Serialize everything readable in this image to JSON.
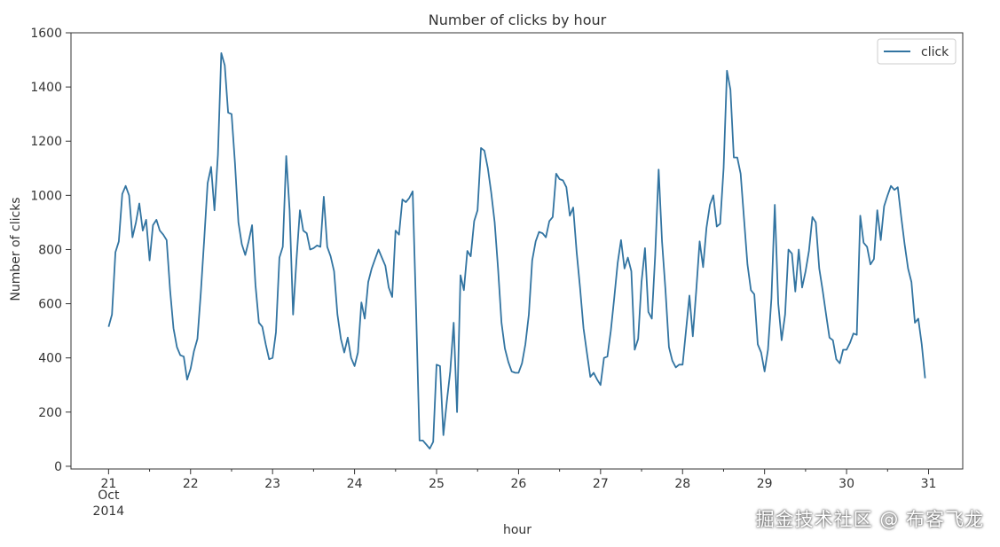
{
  "chart_data": {
    "type": "line",
    "title": "Number of clicks by hour",
    "xlabel": "hour",
    "ylabel": "Number of clicks",
    "xlim": [
      "2014-10-20T13:00",
      "2014-10-31T10:00"
    ],
    "ylim": [
      -10,
      1600
    ],
    "yticks": [
      0,
      200,
      400,
      600,
      800,
      1000,
      1200,
      1400,
      1600
    ],
    "xticks": [
      {
        "x": "2014-10-21",
        "label": "21",
        "sub1": "Oct",
        "sub2": "2014"
      },
      {
        "x": "2014-10-22",
        "label": "22"
      },
      {
        "x": "2014-10-23",
        "label": "23"
      },
      {
        "x": "2014-10-24",
        "label": "24"
      },
      {
        "x": "2014-10-25",
        "label": "25"
      },
      {
        "x": "2014-10-26",
        "label": "26"
      },
      {
        "x": "2014-10-27",
        "label": "27"
      },
      {
        "x": "2014-10-28",
        "label": "28"
      },
      {
        "x": "2014-10-29",
        "label": "29"
      },
      {
        "x": "2014-10-30",
        "label": "30"
      },
      {
        "x": "2014-10-31",
        "label": "31"
      }
    ],
    "legend": {
      "position": "top-right"
    },
    "grid": false,
    "series": [
      {
        "name": "click",
        "color": "#3274a1",
        "points": [
          [
            "2014-10-21T00:00",
            515
          ],
          [
            "2014-10-21T01:00",
            560
          ],
          [
            "2014-10-21T02:00",
            790
          ],
          [
            "2014-10-21T03:00",
            830
          ],
          [
            "2014-10-21T04:00",
            1005
          ],
          [
            "2014-10-21T05:00",
            1035
          ],
          [
            "2014-10-21T06:00",
            1000
          ],
          [
            "2014-10-21T07:00",
            845
          ],
          [
            "2014-10-21T08:00",
            900
          ],
          [
            "2014-10-21T09:00",
            970
          ],
          [
            "2014-10-21T10:00",
            870
          ],
          [
            "2014-10-21T11:00",
            910
          ],
          [
            "2014-10-21T12:00",
            760
          ],
          [
            "2014-10-21T13:00",
            890
          ],
          [
            "2014-10-21T14:00",
            910
          ],
          [
            "2014-10-21T15:00",
            870
          ],
          [
            "2014-10-21T16:00",
            855
          ],
          [
            "2014-10-21T17:00",
            835
          ],
          [
            "2014-10-21T18:00",
            650
          ],
          [
            "2014-10-21T19:00",
            510
          ],
          [
            "2014-10-21T20:00",
            440
          ],
          [
            "2014-10-21T21:00",
            410
          ],
          [
            "2014-10-21T22:00",
            405
          ],
          [
            "2014-10-21T23:00",
            320
          ],
          [
            "2014-10-22T00:00",
            360
          ],
          [
            "2014-10-22T01:00",
            425
          ],
          [
            "2014-10-22T02:00",
            470
          ],
          [
            "2014-10-22T03:00",
            640
          ],
          [
            "2014-10-22T04:00",
            840
          ],
          [
            "2014-10-22T05:00",
            1045
          ],
          [
            "2014-10-22T06:00",
            1105
          ],
          [
            "2014-10-22T07:00",
            945
          ],
          [
            "2014-10-22T08:00",
            1150
          ],
          [
            "2014-10-22T09:00",
            1525
          ],
          [
            "2014-10-22T10:00",
            1480
          ],
          [
            "2014-10-22T11:00",
            1305
          ],
          [
            "2014-10-22T12:00",
            1300
          ],
          [
            "2014-10-22T13:00",
            1120
          ],
          [
            "2014-10-22T14:00",
            900
          ],
          [
            "2014-10-22T15:00",
            820
          ],
          [
            "2014-10-22T16:00",
            780
          ],
          [
            "2014-10-22T17:00",
            830
          ],
          [
            "2014-10-22T18:00",
            890
          ],
          [
            "2014-10-22T19:00",
            670
          ],
          [
            "2014-10-22T20:00",
            530
          ],
          [
            "2014-10-22T21:00",
            515
          ],
          [
            "2014-10-22T22:00",
            450
          ],
          [
            "2014-10-22T23:00",
            395
          ],
          [
            "2014-10-23T00:00",
            400
          ],
          [
            "2014-10-23T01:00",
            495
          ],
          [
            "2014-10-23T02:00",
            770
          ],
          [
            "2014-10-23T03:00",
            810
          ],
          [
            "2014-10-23T04:00",
            1145
          ],
          [
            "2014-10-23T05:00",
            945
          ],
          [
            "2014-10-23T06:00",
            560
          ],
          [
            "2014-10-23T07:00",
            760
          ],
          [
            "2014-10-23T08:00",
            945
          ],
          [
            "2014-10-23T09:00",
            870
          ],
          [
            "2014-10-23T10:00",
            860
          ],
          [
            "2014-10-23T11:00",
            800
          ],
          [
            "2014-10-23T12:00",
            805
          ],
          [
            "2014-10-23T13:00",
            815
          ],
          [
            "2014-10-23T14:00",
            810
          ],
          [
            "2014-10-23T15:00",
            995
          ],
          [
            "2014-10-23T16:00",
            810
          ],
          [
            "2014-10-23T17:00",
            775
          ],
          [
            "2014-10-23T18:00",
            720
          ],
          [
            "2014-10-23T19:00",
            560
          ],
          [
            "2014-10-23T20:00",
            470
          ],
          [
            "2014-10-23T21:00",
            420
          ],
          [
            "2014-10-23T22:00",
            475
          ],
          [
            "2014-10-23T23:00",
            400
          ],
          [
            "2014-10-24T00:00",
            370
          ],
          [
            "2014-10-24T01:00",
            420
          ],
          [
            "2014-10-24T02:00",
            605
          ],
          [
            "2014-10-24T03:00",
            545
          ],
          [
            "2014-10-24T04:00",
            680
          ],
          [
            "2014-10-24T05:00",
            730
          ],
          [
            "2014-10-24T06:00",
            765
          ],
          [
            "2014-10-24T07:00",
            800
          ],
          [
            "2014-10-24T08:00",
            770
          ],
          [
            "2014-10-24T09:00",
            740
          ],
          [
            "2014-10-24T10:00",
            660
          ],
          [
            "2014-10-24T11:00",
            625
          ],
          [
            "2014-10-24T12:00",
            870
          ],
          [
            "2014-10-24T13:00",
            855
          ],
          [
            "2014-10-24T14:00",
            985
          ],
          [
            "2014-10-24T15:00",
            975
          ],
          [
            "2014-10-24T16:00",
            990
          ],
          [
            "2014-10-24T17:00",
            1015
          ],
          [
            "2014-10-24T18:00",
            580
          ],
          [
            "2014-10-24T19:00",
            95
          ],
          [
            "2014-10-24T20:00",
            95
          ],
          [
            "2014-10-24T21:00",
            80
          ],
          [
            "2014-10-24T22:00",
            65
          ],
          [
            "2014-10-24T23:00",
            90
          ],
          [
            "2014-10-25T00:00",
            375
          ],
          [
            "2014-10-25T01:00",
            370
          ],
          [
            "2014-10-25T02:00",
            115
          ],
          [
            "2014-10-25T03:00",
            240
          ],
          [
            "2014-10-25T04:00",
            350
          ],
          [
            "2014-10-25T05:00",
            530
          ],
          [
            "2014-10-25T06:00",
            200
          ],
          [
            "2014-10-25T07:00",
            705
          ],
          [
            "2014-10-25T08:00",
            650
          ],
          [
            "2014-10-25T09:00",
            795
          ],
          [
            "2014-10-25T10:00",
            775
          ],
          [
            "2014-10-25T11:00",
            905
          ],
          [
            "2014-10-25T12:00",
            945
          ],
          [
            "2014-10-25T13:00",
            1175
          ],
          [
            "2014-10-25T14:00",
            1165
          ],
          [
            "2014-10-25T15:00",
            1100
          ],
          [
            "2014-10-25T16:00",
            1010
          ],
          [
            "2014-10-25T17:00",
            900
          ],
          [
            "2014-10-25T18:00",
            730
          ],
          [
            "2014-10-25T19:00",
            530
          ],
          [
            "2014-10-25T20:00",
            435
          ],
          [
            "2014-10-25T21:00",
            385
          ],
          [
            "2014-10-25T22:00",
            350
          ],
          [
            "2014-10-25T23:00",
            345
          ],
          [
            "2014-10-26T00:00",
            345
          ],
          [
            "2014-10-26T01:00",
            380
          ],
          [
            "2014-10-26T02:00",
            450
          ],
          [
            "2014-10-26T03:00",
            560
          ],
          [
            "2014-10-26T04:00",
            760
          ],
          [
            "2014-10-26T05:00",
            830
          ],
          [
            "2014-10-26T06:00",
            865
          ],
          [
            "2014-10-26T07:00",
            860
          ],
          [
            "2014-10-26T08:00",
            845
          ],
          [
            "2014-10-26T09:00",
            905
          ],
          [
            "2014-10-26T10:00",
            920
          ],
          [
            "2014-10-26T11:00",
            1080
          ],
          [
            "2014-10-26T12:00",
            1060
          ],
          [
            "2014-10-26T13:00",
            1055
          ],
          [
            "2014-10-26T14:00",
            1030
          ],
          [
            "2014-10-26T15:00",
            925
          ],
          [
            "2014-10-26T16:00",
            955
          ],
          [
            "2014-10-26T17:00",
            790
          ],
          [
            "2014-10-26T18:00",
            660
          ],
          [
            "2014-10-26T19:00",
            510
          ],
          [
            "2014-10-26T20:00",
            420
          ],
          [
            "2014-10-26T21:00",
            330
          ],
          [
            "2014-10-26T22:00",
            345
          ],
          [
            "2014-10-26T23:00",
            320
          ],
          [
            "2014-10-27T00:00",
            300
          ],
          [
            "2014-10-27T01:00",
            400
          ],
          [
            "2014-10-27T02:00",
            405
          ],
          [
            "2014-10-27T03:00",
            500
          ],
          [
            "2014-10-27T04:00",
            620
          ],
          [
            "2014-10-27T05:00",
            750
          ],
          [
            "2014-10-27T06:00",
            835
          ],
          [
            "2014-10-27T07:00",
            730
          ],
          [
            "2014-10-27T08:00",
            770
          ],
          [
            "2014-10-27T09:00",
            720
          ],
          [
            "2014-10-27T10:00",
            430
          ],
          [
            "2014-10-27T11:00",
            470
          ],
          [
            "2014-10-27T12:00",
            680
          ],
          [
            "2014-10-27T13:00",
            805
          ],
          [
            "2014-10-27T14:00",
            570
          ],
          [
            "2014-10-27T15:00",
            545
          ],
          [
            "2014-10-27T16:00",
            780
          ],
          [
            "2014-10-27T17:00",
            1095
          ],
          [
            "2014-10-27T18:00",
            830
          ],
          [
            "2014-10-27T19:00",
            650
          ],
          [
            "2014-10-27T20:00",
            440
          ],
          [
            "2014-10-27T21:00",
            390
          ],
          [
            "2014-10-27T22:00",
            365
          ],
          [
            "2014-10-27T23:00",
            375
          ],
          [
            "2014-10-28T00:00",
            375
          ],
          [
            "2014-10-28T01:00",
            500
          ],
          [
            "2014-10-28T02:00",
            630
          ],
          [
            "2014-10-28T03:00",
            480
          ],
          [
            "2014-10-28T04:00",
            650
          ],
          [
            "2014-10-28T05:00",
            830
          ],
          [
            "2014-10-28T06:00",
            735
          ],
          [
            "2014-10-28T07:00",
            880
          ],
          [
            "2014-10-28T08:00",
            965
          ],
          [
            "2014-10-28T09:00",
            1000
          ],
          [
            "2014-10-28T10:00",
            885
          ],
          [
            "2014-10-28T11:00",
            895
          ],
          [
            "2014-10-28T12:00",
            1100
          ],
          [
            "2014-10-28T13:00",
            1460
          ],
          [
            "2014-10-28T14:00",
            1390
          ],
          [
            "2014-10-28T15:00",
            1140
          ],
          [
            "2014-10-28T16:00",
            1140
          ],
          [
            "2014-10-28T17:00",
            1080
          ],
          [
            "2014-10-28T18:00",
            910
          ],
          [
            "2014-10-28T19:00",
            745
          ],
          [
            "2014-10-28T20:00",
            650
          ],
          [
            "2014-10-28T21:00",
            635
          ],
          [
            "2014-10-28T22:00",
            450
          ],
          [
            "2014-10-28T23:00",
            420
          ],
          [
            "2014-10-29T00:00",
            350
          ],
          [
            "2014-10-29T01:00",
            430
          ],
          [
            "2014-10-29T02:00",
            620
          ],
          [
            "2014-10-29T03:00",
            965
          ],
          [
            "2014-10-29T04:00",
            600
          ],
          [
            "2014-10-29T05:00",
            465
          ],
          [
            "2014-10-29T06:00",
            560
          ],
          [
            "2014-10-29T07:00",
            800
          ],
          [
            "2014-10-29T08:00",
            785
          ],
          [
            "2014-10-29T09:00",
            645
          ],
          [
            "2014-10-29T10:00",
            800
          ],
          [
            "2014-10-29T11:00",
            660
          ],
          [
            "2014-10-29T12:00",
            720
          ],
          [
            "2014-10-29T13:00",
            795
          ],
          [
            "2014-10-29T14:00",
            920
          ],
          [
            "2014-10-29T15:00",
            900
          ],
          [
            "2014-10-29T16:00",
            730
          ],
          [
            "2014-10-29T17:00",
            650
          ],
          [
            "2014-10-29T18:00",
            560
          ],
          [
            "2014-10-29T19:00",
            475
          ],
          [
            "2014-10-29T20:00",
            465
          ],
          [
            "2014-10-29T21:00",
            395
          ],
          [
            "2014-10-29T22:00",
            380
          ],
          [
            "2014-10-29T23:00",
            430
          ],
          [
            "2014-10-30T00:00",
            430
          ],
          [
            "2014-10-30T01:00",
            455
          ],
          [
            "2014-10-30T02:00",
            490
          ],
          [
            "2014-10-30T03:00",
            485
          ],
          [
            "2014-10-30T04:00",
            925
          ],
          [
            "2014-10-30T05:00",
            825
          ],
          [
            "2014-10-30T06:00",
            810
          ],
          [
            "2014-10-30T07:00",
            745
          ],
          [
            "2014-10-30T08:00",
            765
          ],
          [
            "2014-10-30T09:00",
            945
          ],
          [
            "2014-10-30T10:00",
            835
          ],
          [
            "2014-10-30T11:00",
            960
          ],
          [
            "2014-10-30T12:00",
            1000
          ],
          [
            "2014-10-30T13:00",
            1035
          ],
          [
            "2014-10-30T14:00",
            1020
          ],
          [
            "2014-10-30T15:00",
            1030
          ],
          [
            "2014-10-30T16:00",
            920
          ],
          [
            "2014-10-30T17:00",
            820
          ],
          [
            "2014-10-30T18:00",
            730
          ],
          [
            "2014-10-30T19:00",
            680
          ],
          [
            "2014-10-30T20:00",
            530
          ],
          [
            "2014-10-30T21:00",
            545
          ],
          [
            "2014-10-30T22:00",
            450
          ],
          [
            "2014-10-30T23:00",
            325
          ]
        ]
      }
    ]
  },
  "watermark": "掘金技术社区 @ 布客飞龙"
}
